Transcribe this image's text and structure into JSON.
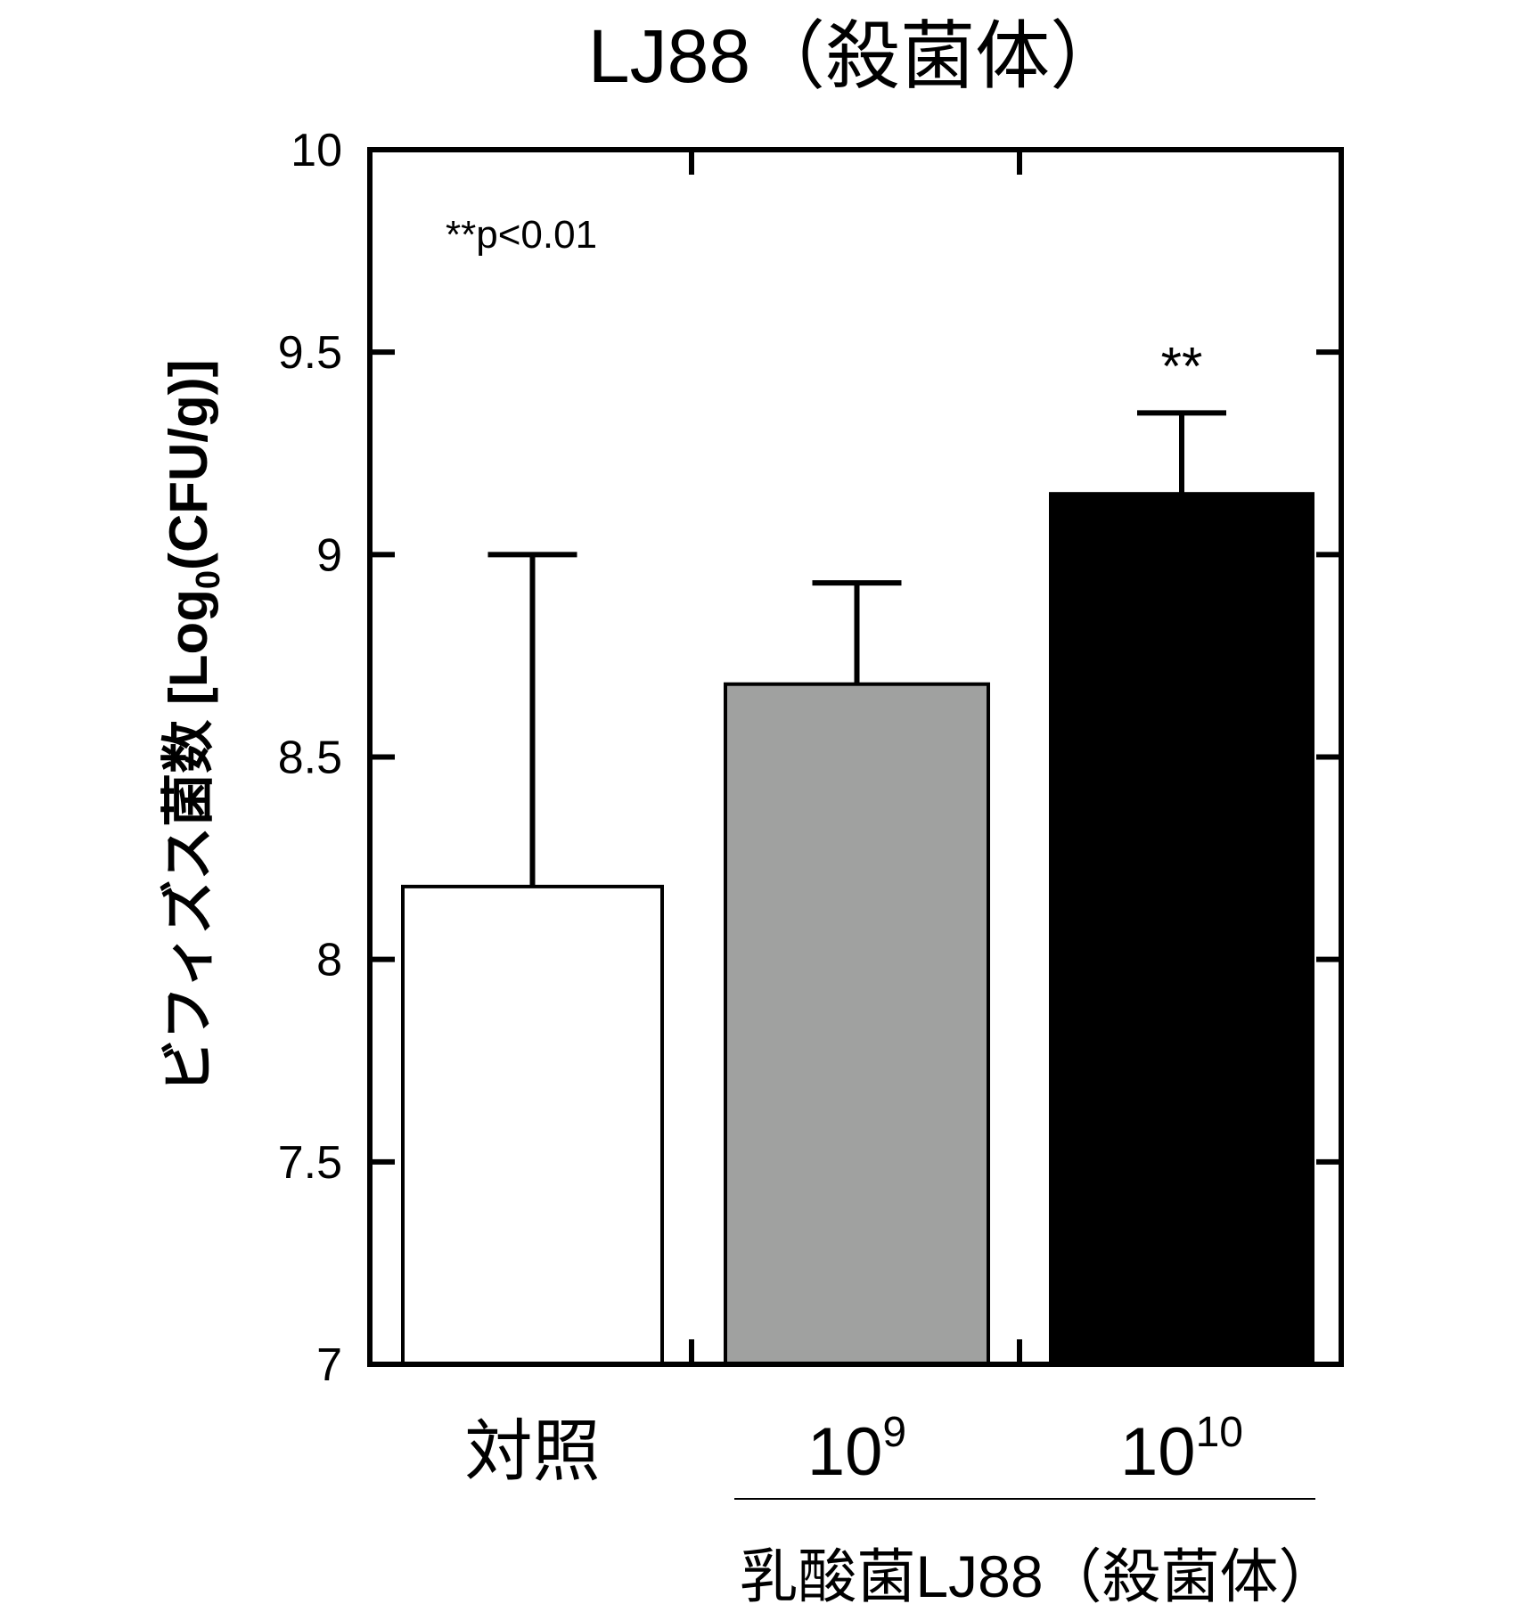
{
  "chart_data": {
    "type": "bar",
    "title": "LJ88（殺菌体）",
    "ylabel": "ビフィズス菌数 [Log10(CFU/g)]",
    "ylabel_parts": {
      "main": "ビフィズス菌数 [Log",
      "sub": "0",
      "tail": "(CFU/g)]"
    },
    "xlabel_group": "乳酸菌LJ88（殺菌体）",
    "ylim": [
      7,
      10
    ],
    "yticks": [
      "7",
      "7.5",
      "8",
      "8.5",
      "9",
      "9.5",
      "10"
    ],
    "categories": [
      {
        "base": "対照",
        "sup": ""
      },
      {
        "base": "10",
        "sup": "9"
      },
      {
        "base": "10",
        "sup": "10"
      }
    ],
    "values": [
      8.18,
      8.68,
      9.15
    ],
    "error_upper": [
      9.0,
      8.93,
      9.35
    ],
    "bar_colors": [
      "#ffffff",
      "#a0a1a0",
      "#000000"
    ],
    "significance": [
      "",
      "",
      "**"
    ],
    "annotation": "**p<0.01",
    "grid": false
  }
}
